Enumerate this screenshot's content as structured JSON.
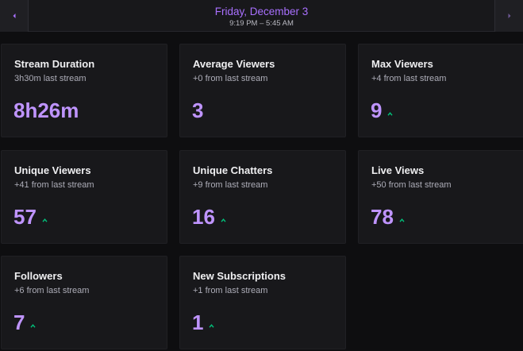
{
  "header": {
    "date": "Friday, December 3",
    "time_range": "9:19 PM – 5:45 AM",
    "prev_icon": "chevron-left-icon",
    "next_icon": "chevron-right-icon"
  },
  "colors": {
    "accent": "#a970ff",
    "value": "#bf94ff",
    "trend_up": "#00c47c",
    "card_bg": "#18181b",
    "page_bg": "#0e0e10"
  },
  "stats": [
    {
      "title": "Stream Duration",
      "sub": "3h30m last stream",
      "value": "8h26m",
      "trend": "none"
    },
    {
      "title": "Average Viewers",
      "sub": "+0 from last stream",
      "value": "3",
      "trend": "none"
    },
    {
      "title": "Max Viewers",
      "sub": "+4 from last stream",
      "value": "9",
      "trend": "up"
    },
    {
      "title": "Unique Viewers",
      "sub": "+41 from last stream",
      "value": "57",
      "trend": "up"
    },
    {
      "title": "Unique Chatters",
      "sub": "+9 from last stream",
      "value": "16",
      "trend": "up"
    },
    {
      "title": "Live Views",
      "sub": "+50 from last stream",
      "value": "78",
      "trend": "up"
    },
    {
      "title": "Followers",
      "sub": "+6 from last stream",
      "value": "7",
      "trend": "up"
    },
    {
      "title": "New Subscriptions",
      "sub": "+1 from last stream",
      "value": "1",
      "trend": "up"
    }
  ]
}
